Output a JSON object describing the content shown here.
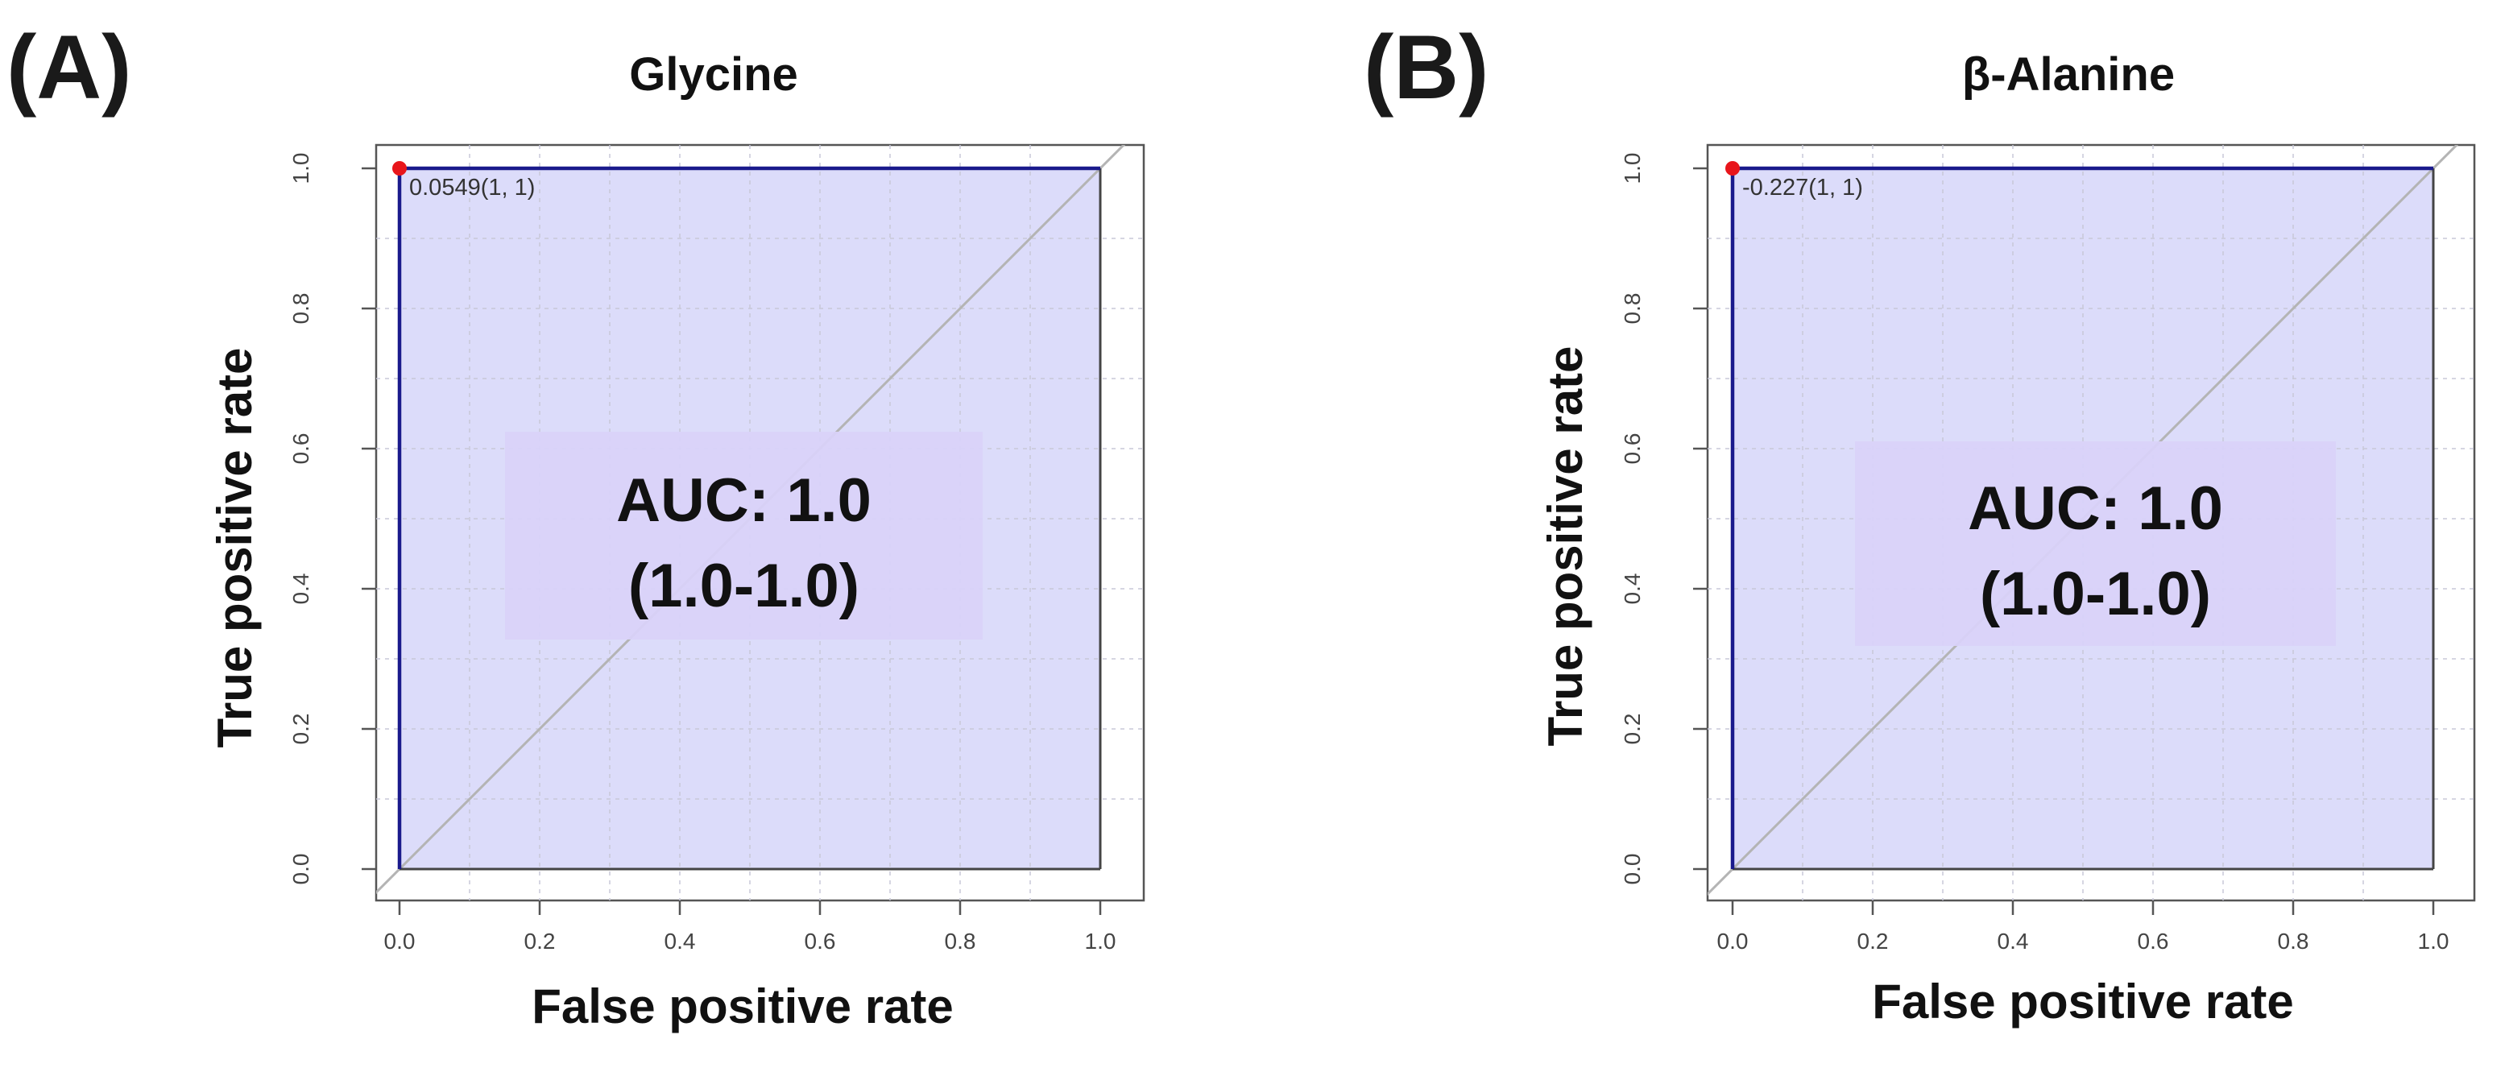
{
  "chart_data": [
    {
      "type": "line",
      "panel_label": "(A)",
      "title": "Glycine",
      "xlabel": "False positive rate",
      "ylabel": "True positive rate",
      "xlim": [
        0.0,
        1.0
      ],
      "ylim": [
        0.0,
        1.0
      ],
      "x_ticks": [
        "0.0",
        "0.2",
        "0.4",
        "0.6",
        "0.8",
        "1.0"
      ],
      "y_ticks": [
        "0.0",
        "0.2",
        "0.4",
        "0.6",
        "0.8",
        "1.0"
      ],
      "grid": true,
      "series": [
        {
          "name": "ROC",
          "x": [
            0.0,
            0.0,
            1.0
          ],
          "y": [
            0.0,
            1.0,
            1.0
          ],
          "color": "#1a1a8c"
        }
      ],
      "diagonal": {
        "x": [
          0.0,
          1.0
        ],
        "y": [
          0.0,
          1.0
        ],
        "color": "#b4b4b4"
      },
      "auc_fill_color": "#dcdcfa",
      "best_point": {
        "x": 0.0,
        "y": 1.0,
        "label": "0.0549(1, 1)",
        "color": "#e8151b"
      },
      "auc_label_line1": "AUC: 1.0",
      "auc_label_line2": "(1.0-1.0)",
      "auc_box_color": "#d9d2f9"
    },
    {
      "type": "line",
      "panel_label": "(B)",
      "title": "β-Alanine",
      "xlabel": "False positive rate",
      "ylabel": "True positive rate",
      "xlim": [
        0.0,
        1.0
      ],
      "ylim": [
        0.0,
        1.0
      ],
      "x_ticks": [
        "0.0",
        "0.2",
        "0.4",
        "0.6",
        "0.8",
        "1.0"
      ],
      "y_ticks": [
        "0.0",
        "0.2",
        "0.4",
        "0.6",
        "0.8",
        "1.0"
      ],
      "grid": true,
      "series": [
        {
          "name": "ROC",
          "x": [
            0.0,
            0.0,
            1.0
          ],
          "y": [
            0.0,
            1.0,
            1.0
          ],
          "color": "#1a1a8c"
        }
      ],
      "diagonal": {
        "x": [
          0.0,
          1.0
        ],
        "y": [
          0.0,
          1.0
        ],
        "color": "#b4b4b4"
      },
      "auc_fill_color": "#dcdcfa",
      "best_point": {
        "x": 0.0,
        "y": 1.0,
        "label": "-0.227(1, 1)",
        "color": "#e8151b"
      },
      "auc_label_line1": "AUC: 1.0",
      "auc_label_line2": "(1.0-1.0)",
      "auc_box_color": "#d9d2f9"
    }
  ]
}
